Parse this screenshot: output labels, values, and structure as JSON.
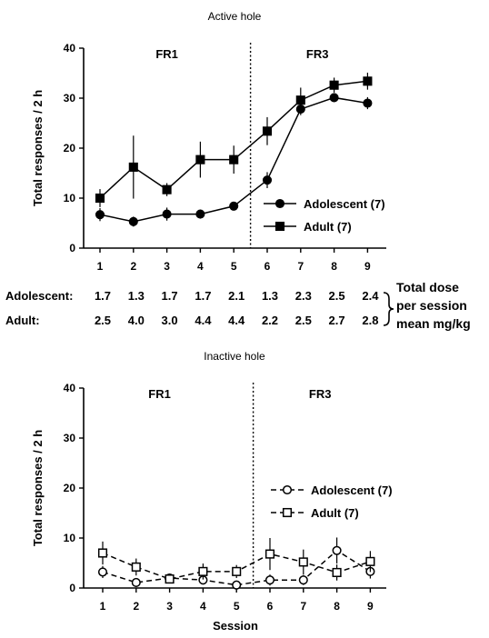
{
  "chart_data": [
    {
      "type": "line",
      "title": "Active hole",
      "xlabel": "",
      "ylabel": "Total responses / 2 h",
      "ylim": [
        0,
        40
      ],
      "yticks": [
        0,
        10,
        20,
        30,
        40
      ],
      "x": [
        1,
        2,
        3,
        4,
        5,
        6,
        7,
        8,
        9
      ],
      "x_tick_labels": [
        "1",
        "2",
        "3",
        "4",
        "5",
        "6",
        "7",
        "8",
        "9"
      ],
      "phase_divider_after": 5.5,
      "phases": [
        {
          "label": "FR1",
          "center_x": 3
        },
        {
          "label": "FR3",
          "center_x": 7.5
        }
      ],
      "legend": "right-lower",
      "series": [
        {
          "name": "Adolescent (7)",
          "marker": "filled-circle",
          "line": "solid",
          "values": [
            6.7,
            5.3,
            6.8,
            6.8,
            8.4,
            13.6,
            27.8,
            30.1,
            29.0
          ],
          "errors": [
            1.3,
            1.0,
            1.3,
            0.9,
            0.7,
            1.6,
            1.2,
            0.8,
            1.2
          ]
        },
        {
          "name": "Adult (7)",
          "marker": "filled-square",
          "line": "solid",
          "values": [
            10.0,
            16.2,
            11.7,
            17.7,
            17.7,
            23.4,
            29.6,
            32.6,
            33.4
          ],
          "errors": [
            1.8,
            6.3,
            1.3,
            3.6,
            2.8,
            2.8,
            2.5,
            1.5,
            1.7
          ]
        }
      ]
    },
    {
      "type": "line",
      "title": "Inactive hole",
      "xlabel": "Session",
      "ylabel": "Total responses / 2 h",
      "ylim": [
        0,
        40
      ],
      "yticks": [
        0,
        10,
        20,
        30,
        40
      ],
      "x": [
        1,
        2,
        3,
        4,
        5,
        6,
        7,
        8,
        9
      ],
      "x_tick_labels": [
        "1",
        "2",
        "3",
        "4",
        "5",
        "6",
        "7",
        "8",
        "9"
      ],
      "phase_divider_after": 5.5,
      "phases": [
        {
          "label": "FR1",
          "center_x": 2.7
        },
        {
          "label": "FR3",
          "center_x": 7.5
        }
      ],
      "legend": "right-middle",
      "series": [
        {
          "name": "Adolescent (7)",
          "marker": "open-circle",
          "line": "dashed",
          "values": [
            3.2,
            1.1,
            2.0,
            1.6,
            0.6,
            1.6,
            1.6,
            7.5,
            3.3
          ],
          "errors": [
            1.2,
            0.9,
            0.8,
            0.9,
            0.8,
            1.1,
            1.0,
            2.6,
            1.4
          ]
        },
        {
          "name": "Adult (7)",
          "marker": "open-square",
          "line": "dashed",
          "values": [
            7.0,
            4.2,
            1.8,
            3.3,
            3.3,
            6.8,
            5.2,
            3.1,
            5.3
          ],
          "errors": [
            2.3,
            1.7,
            0.8,
            1.6,
            1.3,
            3.2,
            2.5,
            1.6,
            2.1
          ]
        }
      ]
    }
  ],
  "dose_table": {
    "rows": [
      {
        "label": "Adolescent:",
        "values": [
          "1.7",
          "1.3",
          "1.7",
          "1.7",
          "2.1",
          "1.3",
          "2.3",
          "2.5",
          "2.4"
        ]
      },
      {
        "label": "Adult:",
        "values": [
          "2.5",
          "4.0",
          "3.0",
          "4.4",
          "4.4",
          "2.2",
          "2.5",
          "2.7",
          "2.8"
        ]
      }
    ],
    "note": [
      "Total dose",
      "per session",
      "mean mg/kg"
    ]
  }
}
